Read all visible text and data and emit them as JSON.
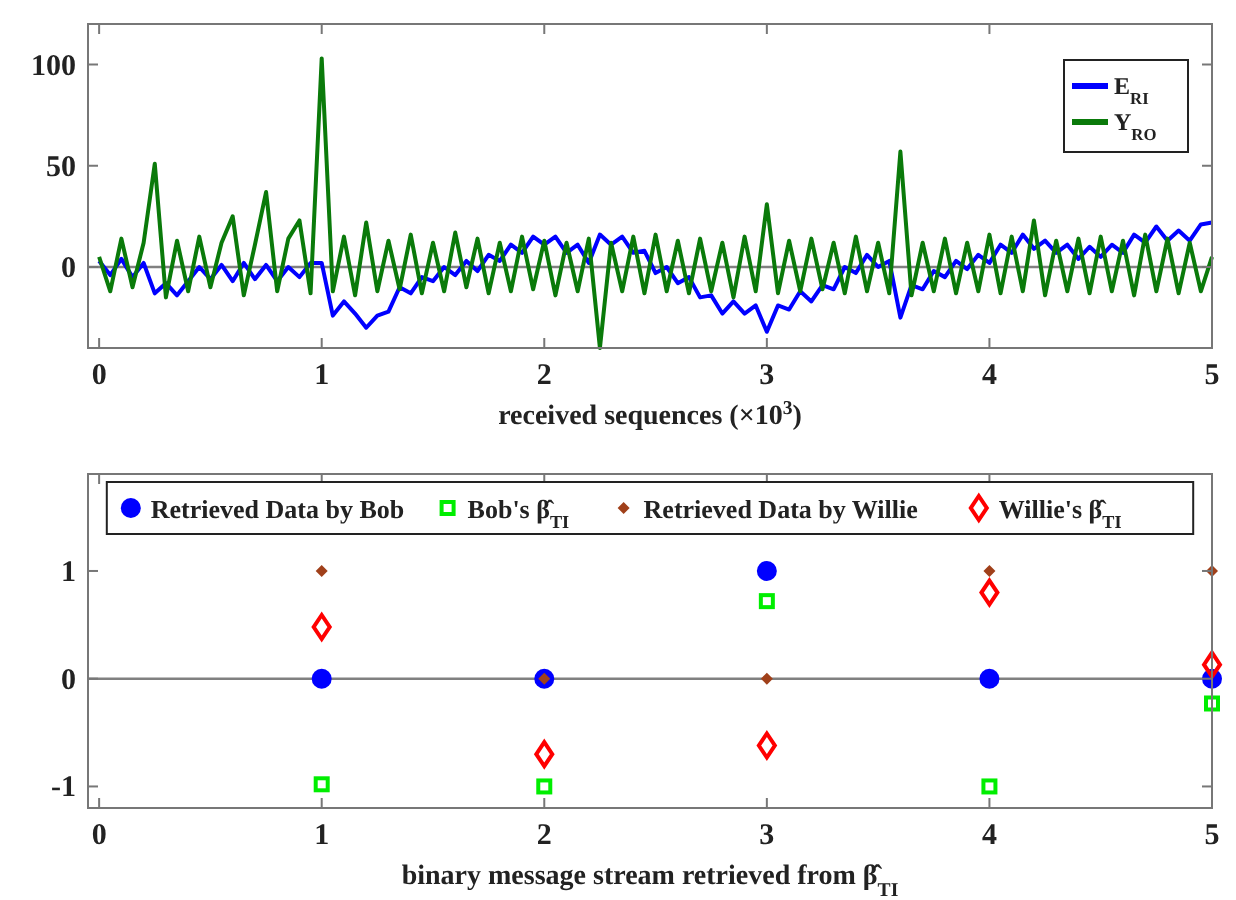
{
  "chart_data": [
    {
      "type": "line",
      "xlabel": "received sequences (×10$^{3}$)",
      "x": [
        0,
        0.05,
        0.1,
        0.15,
        0.2,
        0.25,
        0.3,
        0.35,
        0.4,
        0.45,
        0.5,
        0.55,
        0.6,
        0.65,
        0.7,
        0.75,
        0.8,
        0.85,
        0.9,
        0.95,
        1,
        1.05,
        1.1,
        1.15,
        1.2,
        1.25,
        1.3,
        1.35,
        1.4,
        1.45,
        1.5,
        1.55,
        1.6,
        1.65,
        1.7,
        1.75,
        1.8,
        1.85,
        1.9,
        1.95,
        2,
        2.05,
        2.1,
        2.15,
        2.2,
        2.25,
        2.3,
        2.35,
        2.4,
        2.45,
        2.5,
        2.55,
        2.6,
        2.65,
        2.7,
        2.75,
        2.8,
        2.85,
        2.9,
        2.95,
        3,
        3.05,
        3.1,
        3.15,
        3.2,
        3.25,
        3.3,
        3.35,
        3.4,
        3.45,
        3.5,
        3.55,
        3.6,
        3.65,
        3.7,
        3.75,
        3.8,
        3.85,
        3.9,
        3.95,
        4,
        4.05,
        4.1,
        4.15,
        4.2,
        4.25,
        4.3,
        4.35,
        4.4,
        4.45,
        4.5,
        4.55,
        4.6,
        4.65,
        4.7,
        4.75,
        4.8,
        4.85,
        4.9,
        4.95,
        5
      ],
      "series": [
        {
          "name": "E$_{RI}$",
          "color": "#0000ff",
          "values": [
            3,
            -4,
            4,
            -5,
            2,
            -13,
            -8,
            -14,
            -7,
            0,
            -6,
            1,
            -7,
            2,
            -6,
            1,
            -7,
            0,
            -5,
            2,
            2,
            -24,
            -17,
            -23,
            -30,
            -24,
            -22,
            -10,
            -13,
            -5,
            -7,
            0,
            -4,
            3,
            -2,
            6,
            3,
            11,
            7,
            15,
            11,
            15,
            7,
            11,
            2,
            16,
            11,
            15,
            7,
            8,
            -3,
            0,
            -8,
            -5,
            -15,
            -14,
            -23,
            -17,
            -23,
            -19,
            -32,
            -19,
            -21,
            -12,
            -17,
            -9,
            -11,
            0,
            -3,
            6,
            0,
            3,
            -25,
            -9,
            -11,
            -2,
            -5,
            3,
            -1,
            6,
            2,
            11,
            7,
            16,
            9,
            13,
            7,
            11,
            4,
            10,
            5,
            11,
            7,
            16,
            12,
            20,
            13,
            18,
            13,
            21,
            22
          ]
        },
        {
          "name": "Y$_{RO}$",
          "color": "#0a7a0a",
          "values": [
            5,
            -12,
            14,
            -10,
            12,
            51,
            -15,
            13,
            -12,
            15,
            -10,
            12,
            25,
            -14,
            11,
            37,
            -12,
            14,
            23,
            -13,
            103,
            -12,
            15,
            -14,
            22,
            -12,
            13,
            -11,
            16,
            -13,
            12,
            -12,
            17,
            -10,
            14,
            -13,
            12,
            -12,
            15,
            -11,
            13,
            -14,
            12,
            -12,
            14,
            -40,
            12,
            -12,
            15,
            -13,
            16,
            -12,
            13,
            -13,
            14,
            -12,
            12,
            -15,
            15,
            -12,
            31,
            -13,
            13,
            -12,
            14,
            -11,
            12,
            -13,
            15,
            -12,
            12,
            -13,
            57,
            -14,
            12,
            -12,
            14,
            -13,
            12,
            -12,
            16,
            -13,
            15,
            -12,
            23,
            -14,
            13,
            -12,
            14,
            -13,
            15,
            -12,
            13,
            -14,
            16,
            -12,
            14,
            -13,
            12,
            -12,
            5
          ]
        }
      ],
      "xlim": [
        -0.05,
        5
      ],
      "xticks": [
        0,
        1,
        2,
        3,
        4,
        5
      ],
      "ylim": [
        -40,
        120
      ],
      "yticks": [
        0,
        50,
        100
      ],
      "ref_lines": [
        {
          "axis": "y",
          "value": 0,
          "color": "#808080"
        }
      ],
      "legend": "top right",
      "line_style": "solid",
      "grid": false
    },
    {
      "type": "scatter",
      "xlabel": "binary message stream retrieved from β̂$_{TI}$",
      "x": [
        1,
        2,
        3,
        4,
        5
      ],
      "series": [
        {
          "name": "Retrieved Data by Bob",
          "color": "#0000ff",
          "marker": "circle",
          "values": [
            0,
            0,
            1,
            0,
            0
          ]
        },
        {
          "name": "Bob's β̂$_{TI}$",
          "color": "#00ee00",
          "marker": "square",
          "values": [
            -0.98,
            -1,
            0.72,
            -1,
            -0.23
          ]
        },
        {
          "name": "Retrieved Data by Willie",
          "color": "#a0401a",
          "marker": "diamond",
          "values": [
            1,
            0,
            0,
            1,
            1
          ]
        },
        {
          "name": "Willie's β̂$_{TI}$",
          "color": "#ff0000",
          "marker": "diamond",
          "values": [
            0.48,
            -0.7,
            -0.62,
            0.8,
            0.13
          ]
        }
      ],
      "xlim": [
        -0.05,
        5
      ],
      "xticks": [
        0,
        1,
        2,
        3,
        4,
        5
      ],
      "ylim": [
        -1.2,
        1.9
      ],
      "yticks": [
        -1,
        0,
        1
      ],
      "ref_lines": [
        {
          "axis": "y",
          "value": 0,
          "color": "#808080"
        }
      ],
      "legend": "top",
      "grid": false
    }
  ]
}
